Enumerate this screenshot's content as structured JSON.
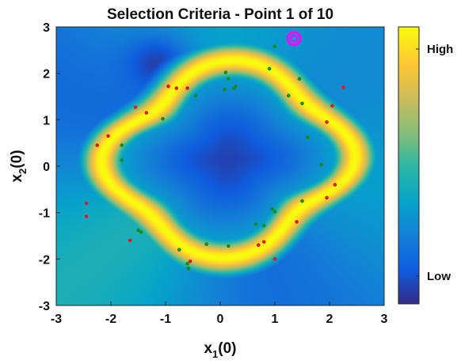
{
  "chart_data": {
    "type": "heatmap",
    "title": "Selection Criteria - Point 1 of 10",
    "xlabel": "x",
    "xlabel_sub": "1",
    "xlabel_suffix": "(0)",
    "ylabel": "x",
    "ylabel_sub": "2",
    "ylabel_suffix": "(0)",
    "xlim": [
      -3,
      3
    ],
    "ylim": [
      -3,
      3
    ],
    "xticks": [
      "-3",
      "-2",
      "-1",
      "0",
      "1",
      "2",
      "3"
    ],
    "yticks": [
      "-3",
      "-2",
      "-1",
      "0",
      "1",
      "2",
      "3"
    ],
    "grid": false,
    "colorbar": {
      "labels": [
        {
          "text": "High",
          "level": 0.92
        },
        {
          "text": "Low",
          "level": 0.1
        }
      ],
      "colors": [
        "#352a87",
        "#0f5cdd",
        "#1481d6",
        "#06a4ca",
        "#2eb7a4",
        "#87bf77",
        "#d1bb59",
        "#fec832",
        "#f9fb0e"
      ]
    },
    "selected_point": {
      "x": 1.35,
      "y": 2.75,
      "color": "#ff00ff"
    },
    "red_points": [
      [
        -0.95,
        1.72
      ],
      [
        -0.8,
        1.68
      ],
      [
        -0.6,
        1.68
      ],
      [
        -1.55,
        1.27
      ],
      [
        -1.35,
        1.15
      ],
      [
        -2.05,
        0.65
      ],
      [
        -2.25,
        0.45
      ],
      [
        -2.45,
        -0.8
      ],
      [
        -2.45,
        -1.08
      ],
      [
        -1.65,
        -1.6
      ],
      [
        -0.55,
        -2.05
      ],
      [
        0.7,
        -1.7
      ],
      [
        0.8,
        -1.63
      ],
      [
        1.0,
        -2.0
      ],
      [
        1.4,
        -1.2
      ],
      [
        1.95,
        -0.68
      ],
      [
        2.1,
        -0.4
      ],
      [
        1.95,
        0.95
      ],
      [
        2.05,
        1.3
      ],
      [
        2.25,
        1.7
      ]
    ],
    "green_points": [
      [
        1.0,
        2.58
      ],
      [
        0.9,
        2.1
      ],
      [
        0.1,
        2.02
      ],
      [
        0.15,
        1.88
      ],
      [
        0.25,
        1.68
      ],
      [
        0.08,
        1.65
      ],
      [
        0.28,
        1.72
      ],
      [
        -0.45,
        1.52
      ],
      [
        -1.05,
        1.02
      ],
      [
        -1.8,
        0.45
      ],
      [
        -1.8,
        0.13
      ],
      [
        -1.5,
        -1.38
      ],
      [
        -1.45,
        -1.42
      ],
      [
        -0.75,
        -1.8
      ],
      [
        -0.6,
        -2.1
      ],
      [
        -0.58,
        -2.2
      ],
      [
        -0.25,
        -1.68
      ],
      [
        0.15,
        -1.72
      ],
      [
        0.65,
        -1.25
      ],
      [
        0.8,
        -1.28
      ],
      [
        0.95,
        -0.92
      ],
      [
        1.0,
        -0.98
      ],
      [
        1.5,
        -0.75
      ],
      [
        1.85,
        0.03
      ],
      [
        1.6,
        0.62
      ],
      [
        1.5,
        1.35
      ],
      [
        1.45,
        1.88
      ],
      [
        1.25,
        1.52
      ]
    ],
    "colors": {
      "red": "#e31a1c",
      "green": "#1a8a1a",
      "marker": "#ff00ff"
    }
  }
}
